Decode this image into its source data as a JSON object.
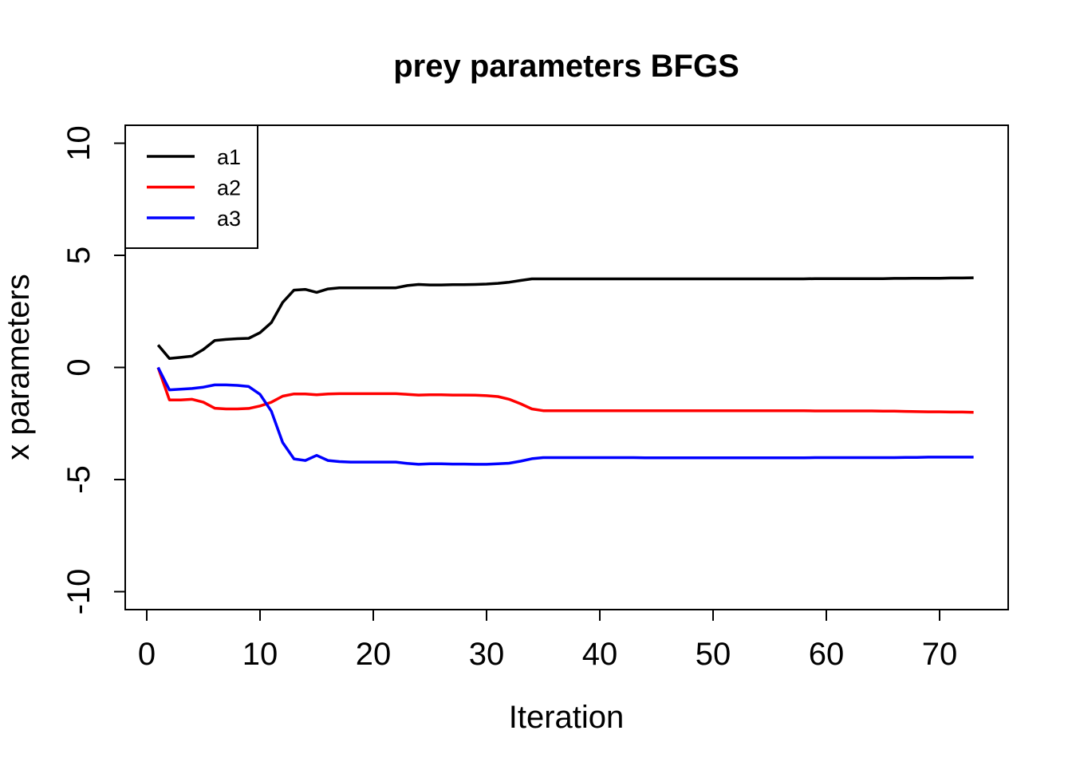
{
  "chart_data": {
    "type": "line",
    "title": "prey parameters BFGS",
    "xlabel": "Iteration",
    "ylabel": "x parameters",
    "xlim": [
      0,
      73
    ],
    "ylim": [
      -10,
      10
    ],
    "x_ticks": [
      0,
      10,
      20,
      30,
      40,
      50,
      60,
      70
    ],
    "y_ticks": [
      -10,
      -5,
      0,
      5,
      10
    ],
    "x_tick_labels": [
      "0",
      "10",
      "20",
      "30",
      "40",
      "50",
      "60",
      "70"
    ],
    "y_tick_labels": [
      "-10",
      "-5",
      "0",
      "5",
      "10"
    ],
    "grid": false,
    "legend_position": "top-left",
    "x": [
      1,
      2,
      3,
      4,
      5,
      6,
      7,
      8,
      9,
      10,
      11,
      12,
      13,
      14,
      15,
      16,
      17,
      18,
      19,
      20,
      21,
      22,
      23,
      24,
      25,
      26,
      27,
      28,
      29,
      30,
      31,
      32,
      33,
      34,
      35,
      36,
      37,
      38,
      39,
      40,
      41,
      42,
      43,
      44,
      45,
      46,
      47,
      48,
      49,
      50,
      51,
      52,
      53,
      54,
      55,
      56,
      57,
      58,
      59,
      60,
      61,
      62,
      63,
      64,
      65,
      66,
      67,
      68,
      69,
      70,
      71,
      72,
      73
    ],
    "series": [
      {
        "name": "a1",
        "color": "#000000",
        "values": [
          1.0,
          0.4,
          0.45,
          0.5,
          0.8,
          1.2,
          1.25,
          1.28,
          1.3,
          1.55,
          2.0,
          2.9,
          3.45,
          3.48,
          3.35,
          3.5,
          3.55,
          3.55,
          3.55,
          3.55,
          3.55,
          3.55,
          3.65,
          3.7,
          3.68,
          3.68,
          3.69,
          3.69,
          3.7,
          3.72,
          3.75,
          3.8,
          3.88,
          3.95,
          3.95,
          3.95,
          3.95,
          3.95,
          3.95,
          3.95,
          3.95,
          3.95,
          3.95,
          3.95,
          3.95,
          3.95,
          3.95,
          3.95,
          3.95,
          3.95,
          3.95,
          3.95,
          3.95,
          3.95,
          3.95,
          3.95,
          3.95,
          3.95,
          3.96,
          3.96,
          3.96,
          3.96,
          3.96,
          3.96,
          3.96,
          3.97,
          3.97,
          3.98,
          3.98,
          3.98,
          3.99,
          3.99,
          4.0
        ]
      },
      {
        "name": "a2",
        "color": "#ff0000",
        "values": [
          0.0,
          -1.45,
          -1.45,
          -1.42,
          -1.55,
          -1.82,
          -1.85,
          -1.85,
          -1.83,
          -1.72,
          -1.55,
          -1.28,
          -1.18,
          -1.18,
          -1.22,
          -1.18,
          -1.17,
          -1.17,
          -1.17,
          -1.17,
          -1.17,
          -1.17,
          -1.2,
          -1.23,
          -1.22,
          -1.22,
          -1.23,
          -1.23,
          -1.24,
          -1.26,
          -1.3,
          -1.42,
          -1.62,
          -1.85,
          -1.93,
          -1.93,
          -1.93,
          -1.93,
          -1.93,
          -1.93,
          -1.93,
          -1.93,
          -1.93,
          -1.93,
          -1.93,
          -1.93,
          -1.93,
          -1.93,
          -1.93,
          -1.93,
          -1.93,
          -1.93,
          -1.93,
          -1.93,
          -1.93,
          -1.93,
          -1.93,
          -1.93,
          -1.94,
          -1.94,
          -1.94,
          -1.94,
          -1.94,
          -1.94,
          -1.95,
          -1.95,
          -1.96,
          -1.97,
          -1.98,
          -1.98,
          -1.99,
          -1.99,
          -2.0
        ]
      },
      {
        "name": "a3",
        "color": "#0000ff",
        "values": [
          0.0,
          -1.0,
          -0.97,
          -0.94,
          -0.88,
          -0.78,
          -0.78,
          -0.8,
          -0.85,
          -1.2,
          -1.95,
          -3.35,
          -4.08,
          -4.15,
          -3.92,
          -4.15,
          -4.2,
          -4.22,
          -4.22,
          -4.22,
          -4.22,
          -4.22,
          -4.28,
          -4.32,
          -4.3,
          -4.3,
          -4.31,
          -4.31,
          -4.32,
          -4.32,
          -4.3,
          -4.27,
          -4.18,
          -4.07,
          -4.02,
          -4.02,
          -4.02,
          -4.02,
          -4.02,
          -4.02,
          -4.02,
          -4.02,
          -4.02,
          -4.03,
          -4.03,
          -4.03,
          -4.03,
          -4.03,
          -4.03,
          -4.03,
          -4.03,
          -4.03,
          -4.03,
          -4.03,
          -4.03,
          -4.03,
          -4.03,
          -4.03,
          -4.02,
          -4.02,
          -4.02,
          -4.02,
          -4.02,
          -4.02,
          -4.02,
          -4.02,
          -4.01,
          -4.01,
          -4.0,
          -4.0,
          -4.0,
          -4.0,
          -4.0
        ]
      }
    ]
  }
}
